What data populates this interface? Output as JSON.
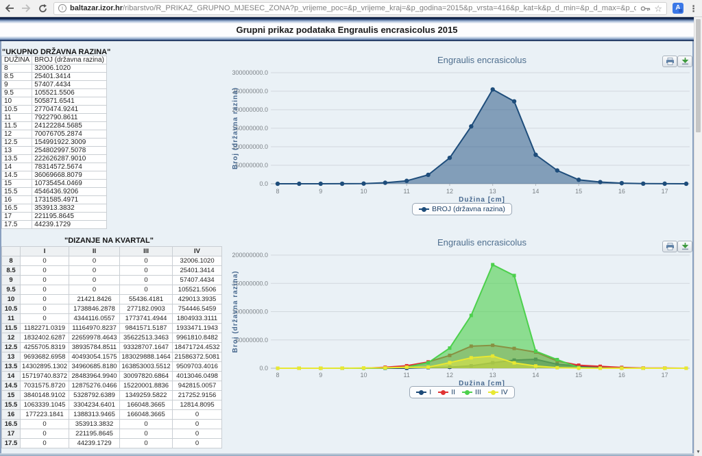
{
  "browser": {
    "url_domain": "baltazar.izor.hr",
    "url_path": "/ribarstvo/R_PRIKAZ_GRUPNO_MJESEC_ZONA?p_vrijeme_poc=&p_vrijeme_kraj=&p_godina=2015&p_vrsta=416&p_kat=k&p_d_min=&p_d_max=&p_d_korak=0.5&p_vrsta_ribolova=..."
  },
  "icons": {
    "info": "i",
    "star": "☆",
    "translate_letter": "A",
    "menu": "⋮",
    "scroll_down": "▾"
  },
  "header": {
    "title": "Grupni prikaz podataka Engraulis encrasicolus 2015"
  },
  "tables": {
    "ukupno": {
      "title": "\"UKUPNO DRŽAVNA RAZINA\"",
      "headers": [
        "DUŽINA",
        "BROJ (državna razina)"
      ],
      "rows": [
        [
          "8",
          "32006.1020"
        ],
        [
          "8.5",
          "25401.3414"
        ],
        [
          "9",
          "57407.4434"
        ],
        [
          "9.5",
          "105521.5506"
        ],
        [
          "10",
          "505871.6541"
        ],
        [
          "10.5",
          "2770474.9241"
        ],
        [
          "11",
          "7922790.8611"
        ],
        [
          "11.5",
          "24122284.5685"
        ],
        [
          "12",
          "70076705.2874"
        ],
        [
          "12.5",
          "154991922.3009"
        ],
        [
          "13",
          "254802997.5078"
        ],
        [
          "13.5",
          "222626287.9010"
        ],
        [
          "14",
          "78314572.5674"
        ],
        [
          "14.5",
          "36069668.8079"
        ],
        [
          "15",
          "10735454.0469"
        ],
        [
          "15.5",
          "4546436.9206"
        ],
        [
          "16",
          "1731585.4971"
        ],
        [
          "16.5",
          "353913.3832"
        ],
        [
          "17",
          "221195.8645"
        ],
        [
          "17.5",
          "44239.1729"
        ]
      ]
    },
    "kvartal": {
      "title": "\"DIZANJE NA KVARTAL\"",
      "headers": [
        "",
        "I",
        "II",
        "III",
        "IV"
      ],
      "rows": [
        [
          "8",
          "0",
          "0",
          "0",
          "32006.1020"
        ],
        [
          "8.5",
          "0",
          "0",
          "0",
          "25401.3414"
        ],
        [
          "9",
          "0",
          "0",
          "0",
          "57407.4434"
        ],
        [
          "9.5",
          "0",
          "0",
          "0",
          "105521.5506"
        ],
        [
          "10",
          "0",
          "21421.8426",
          "55436.4181",
          "429013.3935"
        ],
        [
          "10.5",
          "0",
          "1738846.2878",
          "277182.0903",
          "754446.5459"
        ],
        [
          "11",
          "0",
          "4344116.0557",
          "1773741.4944",
          "1804933.3111"
        ],
        [
          "11.5",
          "1182271.0319",
          "11164970.8237",
          "9841571.5187",
          "1933471.1943"
        ],
        [
          "12",
          "1832402.6287",
          "22659978.4643",
          "35622513.3463",
          "9961810.8482"
        ],
        [
          "12.5",
          "4255705.8319",
          "38935784.8511",
          "93328707.1647",
          "18471724.4532"
        ],
        [
          "13",
          "9693682.6958",
          "40493054.1575",
          "183029888.1464",
          "21586372.5081"
        ],
        [
          "13.5",
          "14302895.1302",
          "34960685.8180",
          "163853003.5512",
          "9509703.4016"
        ],
        [
          "14",
          "15719740.8372",
          "28483964.9940",
          "30097820.6864",
          "4013046.0498"
        ],
        [
          "14.5",
          "7031575.8720",
          "12875276.0466",
          "15220001.8836",
          "942815.0057"
        ],
        [
          "15",
          "3840148.9102",
          "5328792.6389",
          "1349259.5822",
          "217252.9156"
        ],
        [
          "15.5",
          "1063339.1045",
          "3304234.6401",
          "166048.3665",
          "12814.8095"
        ],
        [
          "16",
          "177223.1841",
          "1388313.9465",
          "166048.3665",
          "0"
        ],
        [
          "16.5",
          "0",
          "353913.3832",
          "0",
          "0"
        ],
        [
          "17",
          "0",
          "221195.8645",
          "0",
          "0"
        ],
        [
          "17.5",
          "0",
          "44239.1729",
          "0",
          "0"
        ]
      ]
    }
  },
  "chart_data": [
    {
      "type": "area",
      "title": "Engraulis encrasicolus",
      "xlabel": "Dužina [cm]",
      "ylabel": "Broj (državna razina)",
      "x": [
        8,
        8.5,
        9,
        9.5,
        10,
        10.5,
        11,
        11.5,
        12,
        12.5,
        13,
        13.5,
        14,
        14.5,
        15,
        15.5,
        16,
        16.5,
        17,
        17.5
      ],
      "xticks": [
        8,
        9,
        10,
        11,
        12,
        13,
        14,
        15,
        16,
        17
      ],
      "ylim": [
        0,
        300000000
      ],
      "ytick_step": 50000000,
      "grid": true,
      "legend_position": "bottom",
      "series": [
        {
          "name": "BROJ (državna razina)",
          "color": "#1e4d7b",
          "fill": "rgba(44,90,134,0.55)",
          "marker": "circle",
          "values": [
            32006.102,
            25401.3414,
            57407.4434,
            105521.5506,
            505871.6541,
            2770474.9241,
            7922790.8611,
            24122284.5685,
            70076705.2874,
            154991922.3009,
            254802997.5078,
            222626287.901,
            78314572.5674,
            36069668.8079,
            10735454.0469,
            4546436.9206,
            1731585.4971,
            353913.3832,
            221195.8645,
            44239.1729
          ]
        }
      ]
    },
    {
      "type": "area",
      "title": "Engraulis encrasicolus",
      "xlabel": "Dužina [cm]",
      "ylabel": "Broj (državna razina)",
      "x": [
        8,
        8.5,
        9,
        9.5,
        10,
        10.5,
        11,
        11.5,
        12,
        12.5,
        13,
        13.5,
        14,
        14.5,
        15,
        15.5,
        16,
        16.5,
        17,
        17.5
      ],
      "xticks": [
        8,
        9,
        10,
        11,
        12,
        13,
        14,
        15,
        16,
        17
      ],
      "ylim": [
        0,
        200000000
      ],
      "ytick_step": 50000000,
      "grid": true,
      "legend_position": "bottom",
      "series": [
        {
          "name": "I",
          "color": "#1c4a78",
          "fill": "rgba(28,74,120,0.55)",
          "marker": "square",
          "values": [
            0,
            0,
            0,
            0,
            0,
            0,
            0,
            1182271.0319,
            1832402.6287,
            4255705.8319,
            9693682.6958,
            14302895.1302,
            15719740.8372,
            7031575.872,
            3840148.9102,
            1063339.1045,
            177223.1841,
            0,
            0,
            0
          ]
        },
        {
          "name": "II",
          "color": "#e03232",
          "fill": "rgba(224,50,50,0.35)",
          "marker": "square",
          "values": [
            0,
            0,
            0,
            0,
            21421.8426,
            1738846.2878,
            4344116.0557,
            11164970.8237,
            22659978.4643,
            38935784.8511,
            40493054.1575,
            34960685.818,
            28483964.994,
            12875276.0466,
            5328792.6389,
            3304234.6401,
            1388313.9465,
            353913.3832,
            221195.8645,
            44239.1729
          ]
        },
        {
          "name": "III",
          "color": "#4cd04c",
          "fill": "rgba(76,208,76,0.6)",
          "marker": "square",
          "values": [
            0,
            0,
            0,
            0,
            55436.4181,
            277182.0903,
            1773741.4944,
            9841571.5187,
            35622513.3463,
            93328707.1647,
            183029888.1464,
            163853003.5512,
            30097820.6864,
            15220001.8836,
            1349259.5822,
            166048.3665,
            166048.3665,
            0,
            0,
            0
          ]
        },
        {
          "name": "IV",
          "color": "#e8e832",
          "fill": "rgba(232,232,60,0.55)",
          "marker": "square",
          "values": [
            32006.102,
            25401.3414,
            57407.4434,
            105521.5506,
            429013.3935,
            754446.5459,
            1804933.3111,
            1933471.1943,
            9961810.8482,
            18471724.4532,
            21586372.5081,
            9509703.4016,
            4013046.0498,
            942815.0057,
            217252.9156,
            12814.8095,
            0,
            0,
            0,
            0
          ]
        }
      ]
    }
  ],
  "colors": {
    "accent_navy": "#1e4d7b",
    "banner_blue": "#2c4a7c",
    "page_bg": "#eaf1f6",
    "chart_title": "#4e6e8e",
    "download_green": "#3f9b3f",
    "print_blue": "#5b7fa6"
  }
}
